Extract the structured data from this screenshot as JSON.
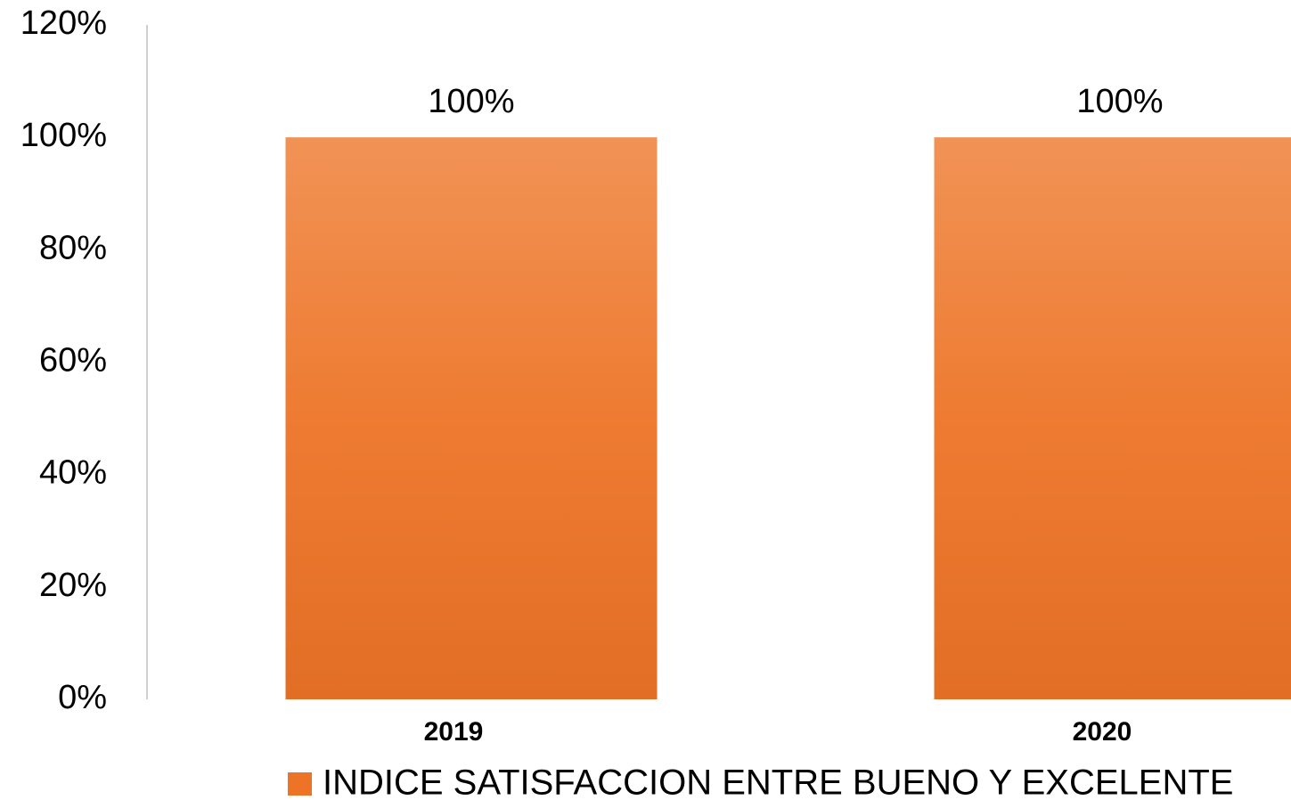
{
  "chart_data": {
    "type": "bar",
    "categories": [
      "2019",
      "2020"
    ],
    "series": [
      {
        "name": "INDICE SATISFACCION ENTRE BUENO Y EXCELENTE",
        "color": "#ed7426",
        "values": [
          100,
          100
        ],
        "value_labels": [
          "100%",
          "100%"
        ]
      }
    ],
    "ylim": [
      0,
      120
    ],
    "yticks": [
      {
        "value": 0,
        "label": "0%"
      },
      {
        "value": 20,
        "label": "20%"
      },
      {
        "value": 40,
        "label": "40%"
      },
      {
        "value": 60,
        "label": "60%"
      },
      {
        "value": 80,
        "label": "80%"
      },
      {
        "value": 100,
        "label": "100%"
      },
      {
        "value": 120,
        "label": "120%"
      }
    ],
    "grid": false,
    "legend": "bottom"
  }
}
